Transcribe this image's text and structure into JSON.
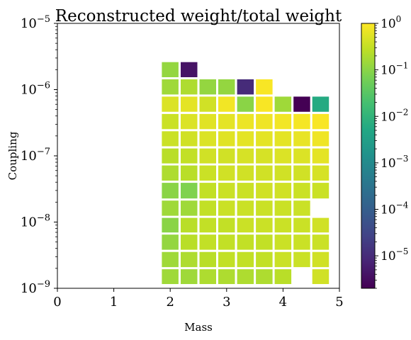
{
  "chart_data": {
    "type": "heatmap",
    "title": "Reconstructed weight/total weight",
    "xlabel": "Mass",
    "ylabel": "Coupling",
    "xlim": [
      0,
      5
    ],
    "ylim": [
      1e-09,
      1e-05
    ],
    "yscale": "log",
    "x_ticks": [
      "0",
      "1",
      "2",
      "3",
      "4",
      "5"
    ],
    "y_ticks": [
      {
        "base": "10",
        "exp": "−9"
      },
      {
        "base": "10",
        "exp": "−8"
      },
      {
        "base": "10",
        "exp": "−7"
      },
      {
        "base": "10",
        "exp": "−6"
      },
      {
        "base": "10",
        "exp": "−5"
      }
    ],
    "colorbar": {
      "scale": "log",
      "range": [
        2e-06,
        1
      ],
      "colormap": "viridis",
      "ticks": [
        {
          "base": "10",
          "exp": "0",
          "value": 1
        },
        {
          "base": "10",
          "exp": "−1",
          "value": 0.1
        },
        {
          "base": "10",
          "exp": "−2",
          "value": 0.01
        },
        {
          "base": "10",
          "exp": "−3",
          "value": 0.001
        },
        {
          "base": "10",
          "exp": "−4",
          "value": 0.0001
        },
        {
          "base": "10",
          "exp": "−5",
          "value": 1e-05
        }
      ]
    },
    "grid": false,
    "x_centers": [
      2.0,
      2.333,
      2.667,
      3.0,
      3.333,
      3.667,
      4.0,
      4.333,
      4.667
    ],
    "y_centers": [
      1.5e-09,
      2.7e-09,
      5e-09,
      9e-09,
      1.6e-08,
      3e-08,
      5.5e-08,
      1e-07,
      1.8e-07,
      3.3e-07,
      6e-07,
      1.1e-06,
      2e-06
    ],
    "values": [
      [
        0.15,
        0.15,
        0.2,
        0.2,
        0.2,
        0.2,
        0.25,
        null,
        0.4
      ],
      [
        0.15,
        0.2,
        0.25,
        0.3,
        0.3,
        0.3,
        0.35,
        0.35,
        0.4
      ],
      [
        0.12,
        0.25,
        0.3,
        0.3,
        0.3,
        0.3,
        0.35,
        0.35,
        0.35
      ],
      [
        0.1,
        0.25,
        0.3,
        0.3,
        0.35,
        0.35,
        0.35,
        0.35,
        0.4
      ],
      [
        0.15,
        0.15,
        0.3,
        0.35,
        0.35,
        0.35,
        0.35,
        0.35,
        null
      ],
      [
        0.1,
        0.08,
        0.3,
        0.35,
        0.35,
        0.4,
        0.4,
        0.35,
        0.35
      ],
      [
        0.2,
        0.25,
        0.35,
        0.4,
        0.4,
        0.4,
        0.4,
        0.4,
        0.45
      ],
      [
        0.25,
        0.3,
        0.4,
        0.4,
        0.45,
        0.45,
        0.5,
        0.5,
        0.6
      ],
      [
        0.35,
        0.4,
        0.5,
        0.55,
        0.6,
        0.6,
        0.6,
        0.65,
        0.75
      ],
      [
        0.35,
        0.5,
        0.55,
        0.6,
        0.7,
        0.75,
        0.8,
        0.85,
        0.9
      ],
      [
        0.5,
        0.6,
        0.4,
        0.8,
        0.1,
        0.9,
        0.15,
        2e-06,
        0.006
      ],
      [
        0.15,
        0.2,
        0.12,
        0.12,
        1e-05,
        0.9,
        null,
        null,
        null
      ],
      [
        0.12,
        4e-06,
        null,
        null,
        null,
        null,
        null,
        null,
        null
      ]
    ]
  }
}
